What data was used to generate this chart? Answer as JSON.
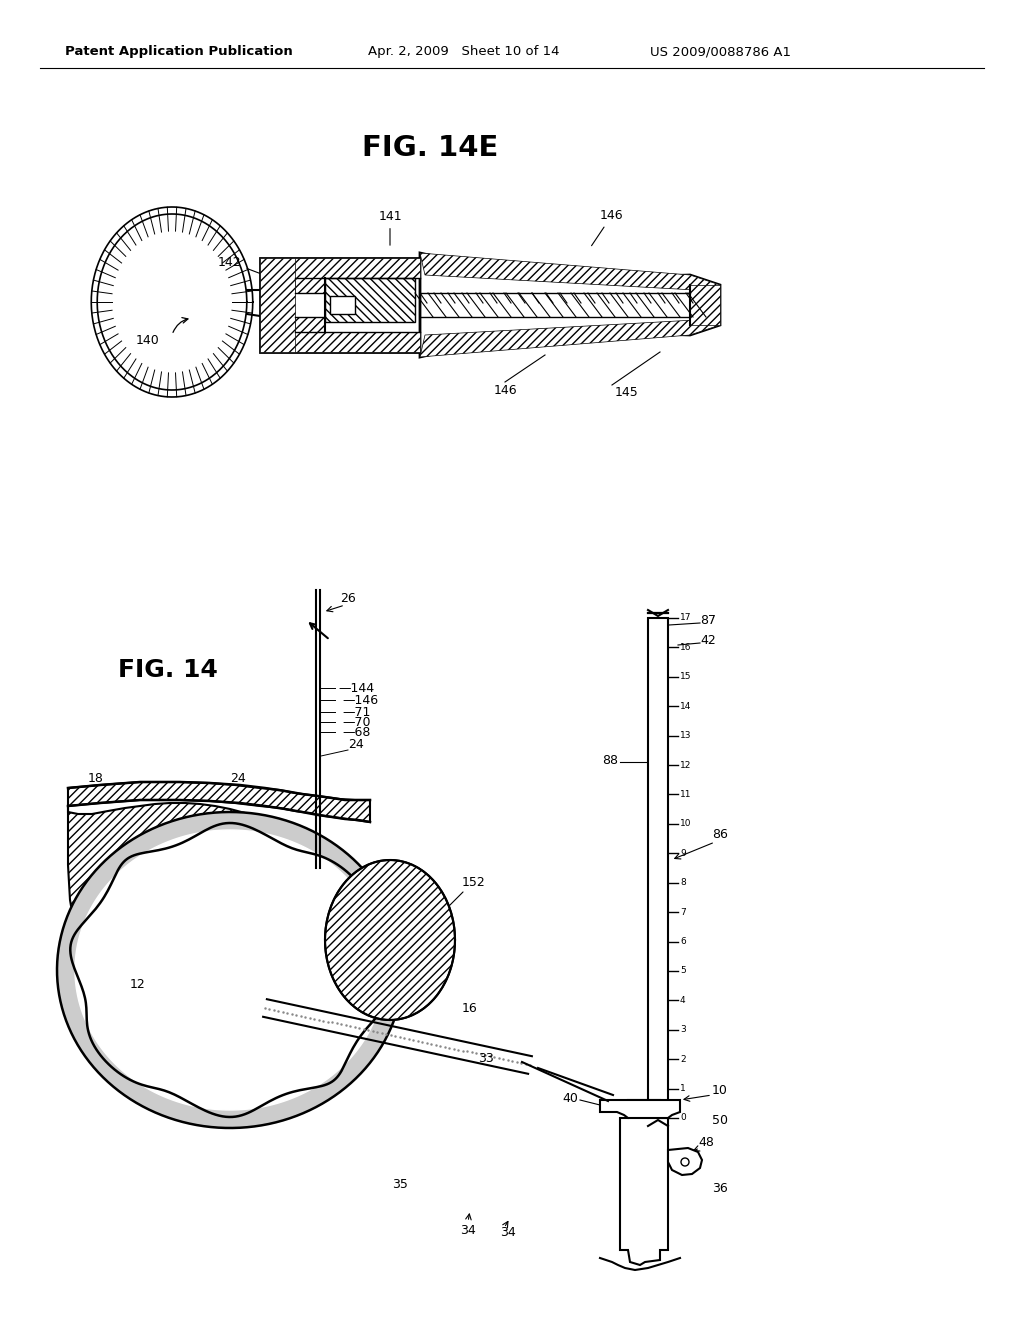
{
  "background_color": "#ffffff",
  "line_color": "#000000",
  "header1": "Patent Application Publication",
  "header2": "Apr. 2, 2009",
  "header3": "Sheet 10 of 14",
  "header4": "US 2009/0088786 A1",
  "fig14e_label": "FIG. 14E",
  "fig14_label": "FIG. 14"
}
